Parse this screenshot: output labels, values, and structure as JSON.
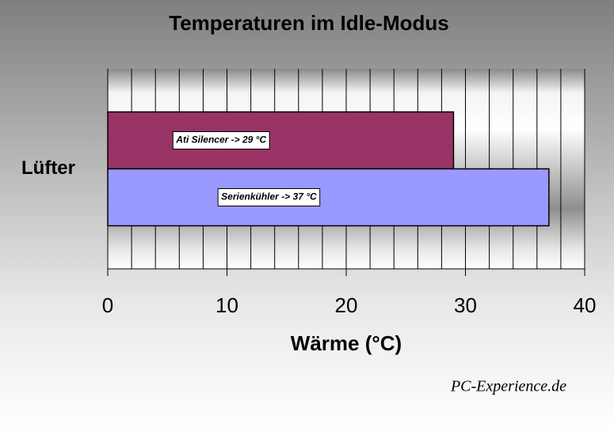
{
  "chart_data": {
    "type": "barh",
    "title": "Temperaturen im Idle-Modus",
    "xlabel": "Wärme (°C)",
    "categories": [
      "Lüfter"
    ],
    "series": [
      {
        "name": "Ati Silencer",
        "color": "#993366",
        "values": [
          29
        ],
        "value_labels": [
          "Ati Silencer ->  29 °C"
        ]
      },
      {
        "name": "Serienkühler",
        "color": "#9999ff",
        "values": [
          37
        ],
        "value_labels": [
          "Serienkühler -> 37 °C"
        ]
      }
    ],
    "xlim": [
      0,
      40
    ],
    "xticks": [
      0,
      10,
      20,
      30,
      40
    ],
    "xgrid": [
      0,
      2,
      4,
      6,
      8,
      10,
      12,
      14,
      16,
      18,
      20,
      22,
      24,
      26,
      28,
      30,
      32,
      34,
      36,
      38,
      40
    ],
    "grid": true,
    "watermark": "PC-Experience.de"
  }
}
